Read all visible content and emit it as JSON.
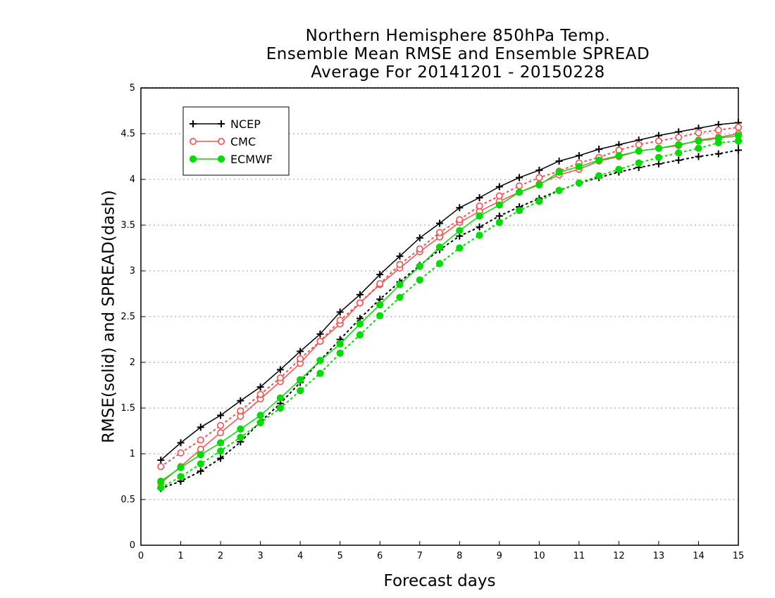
{
  "chart_data": {
    "type": "line",
    "title": [
      "Northern Hemisphere 850hPa Temp.",
      "Ensemble Mean RMSE and Ensemble SPREAD",
      "Average For 20141201 - 20150228"
    ],
    "xlabel": "Forecast days",
    "ylabel": "RMSE(solid) and SPREAD(dash)",
    "xlim": [
      0,
      15
    ],
    "ylim": [
      0,
      5
    ],
    "x_ticks": [
      0,
      1,
      2,
      3,
      4,
      5,
      6,
      7,
      8,
      9,
      10,
      11,
      12,
      13,
      14,
      15
    ],
    "y_ticks": [
      0,
      0.5,
      1,
      1.5,
      2,
      2.5,
      3,
      3.5,
      4,
      4.5,
      5
    ],
    "grid": "horizontal dotted",
    "legend_position": "top-left",
    "x": [
      0.5,
      1,
      1.5,
      2,
      2.5,
      3,
      3.5,
      4,
      4.5,
      5,
      5.5,
      6,
      6.5,
      7,
      7.5,
      8,
      8.5,
      9,
      9.5,
      10,
      10.5,
      11,
      11.5,
      12,
      12.5,
      13,
      13.5,
      14,
      14.5,
      15
    ],
    "series": [
      {
        "name": "NCEP",
        "color": "#000000",
        "marker": "plus",
        "rmse": [
          0.93,
          1.12,
          1.29,
          1.42,
          1.58,
          1.73,
          1.92,
          2.12,
          2.31,
          2.55,
          2.74,
          2.96,
          3.16,
          3.36,
          3.52,
          3.69,
          3.8,
          3.92,
          4.02,
          4.1,
          4.2,
          4.26,
          4.33,
          4.38,
          4.43,
          4.48,
          4.52,
          4.56,
          4.6,
          4.62
        ],
        "spread": [
          0.62,
          0.7,
          0.81,
          0.95,
          1.13,
          1.35,
          1.55,
          1.78,
          2.02,
          2.25,
          2.48,
          2.69,
          2.88,
          3.06,
          3.23,
          3.38,
          3.48,
          3.6,
          3.7,
          3.79,
          3.88,
          3.96,
          4.02,
          4.08,
          4.13,
          4.17,
          4.21,
          4.25,
          4.28,
          4.32
        ]
      },
      {
        "name": "CMC",
        "color": "#ff4c4c",
        "marker": "open-circle",
        "rmse": [
          0.68,
          0.86,
          1.05,
          1.23,
          1.41,
          1.6,
          1.79,
          1.99,
          2.23,
          2.42,
          2.65,
          2.85,
          3.03,
          3.21,
          3.37,
          3.53,
          3.65,
          3.76,
          3.86,
          3.95,
          4.05,
          4.11,
          4.2,
          4.25,
          4.31,
          4.34,
          4.37,
          4.43,
          4.46,
          4.5
        ],
        "spread": [
          0.86,
          1.01,
          1.15,
          1.31,
          1.47,
          1.65,
          1.83,
          2.04,
          2.23,
          2.46,
          2.65,
          2.86,
          3.07,
          3.24,
          3.42,
          3.56,
          3.71,
          3.82,
          3.93,
          4.02,
          4.09,
          4.18,
          4.24,
          4.32,
          4.38,
          4.42,
          4.46,
          4.51,
          4.54,
          4.57
        ]
      },
      {
        "name": "ECMWF",
        "color": "#00dd00",
        "marker": "filled-circle",
        "rmse": [
          0.7,
          0.85,
          0.99,
          1.12,
          1.27,
          1.42,
          1.61,
          1.81,
          2.02,
          2.2,
          2.42,
          2.63,
          2.85,
          3.05,
          3.26,
          3.44,
          3.6,
          3.72,
          3.86,
          3.94,
          4.08,
          4.14,
          4.21,
          4.26,
          4.31,
          4.34,
          4.38,
          4.42,
          4.45,
          4.48
        ],
        "spread": [
          0.63,
          0.75,
          0.89,
          1.03,
          1.18,
          1.34,
          1.5,
          1.69,
          1.88,
          2.1,
          2.3,
          2.51,
          2.71,
          2.9,
          3.08,
          3.25,
          3.39,
          3.53,
          3.66,
          3.76,
          3.88,
          3.96,
          4.04,
          4.11,
          4.18,
          4.24,
          4.29,
          4.34,
          4.4,
          4.42
        ]
      }
    ]
  }
}
